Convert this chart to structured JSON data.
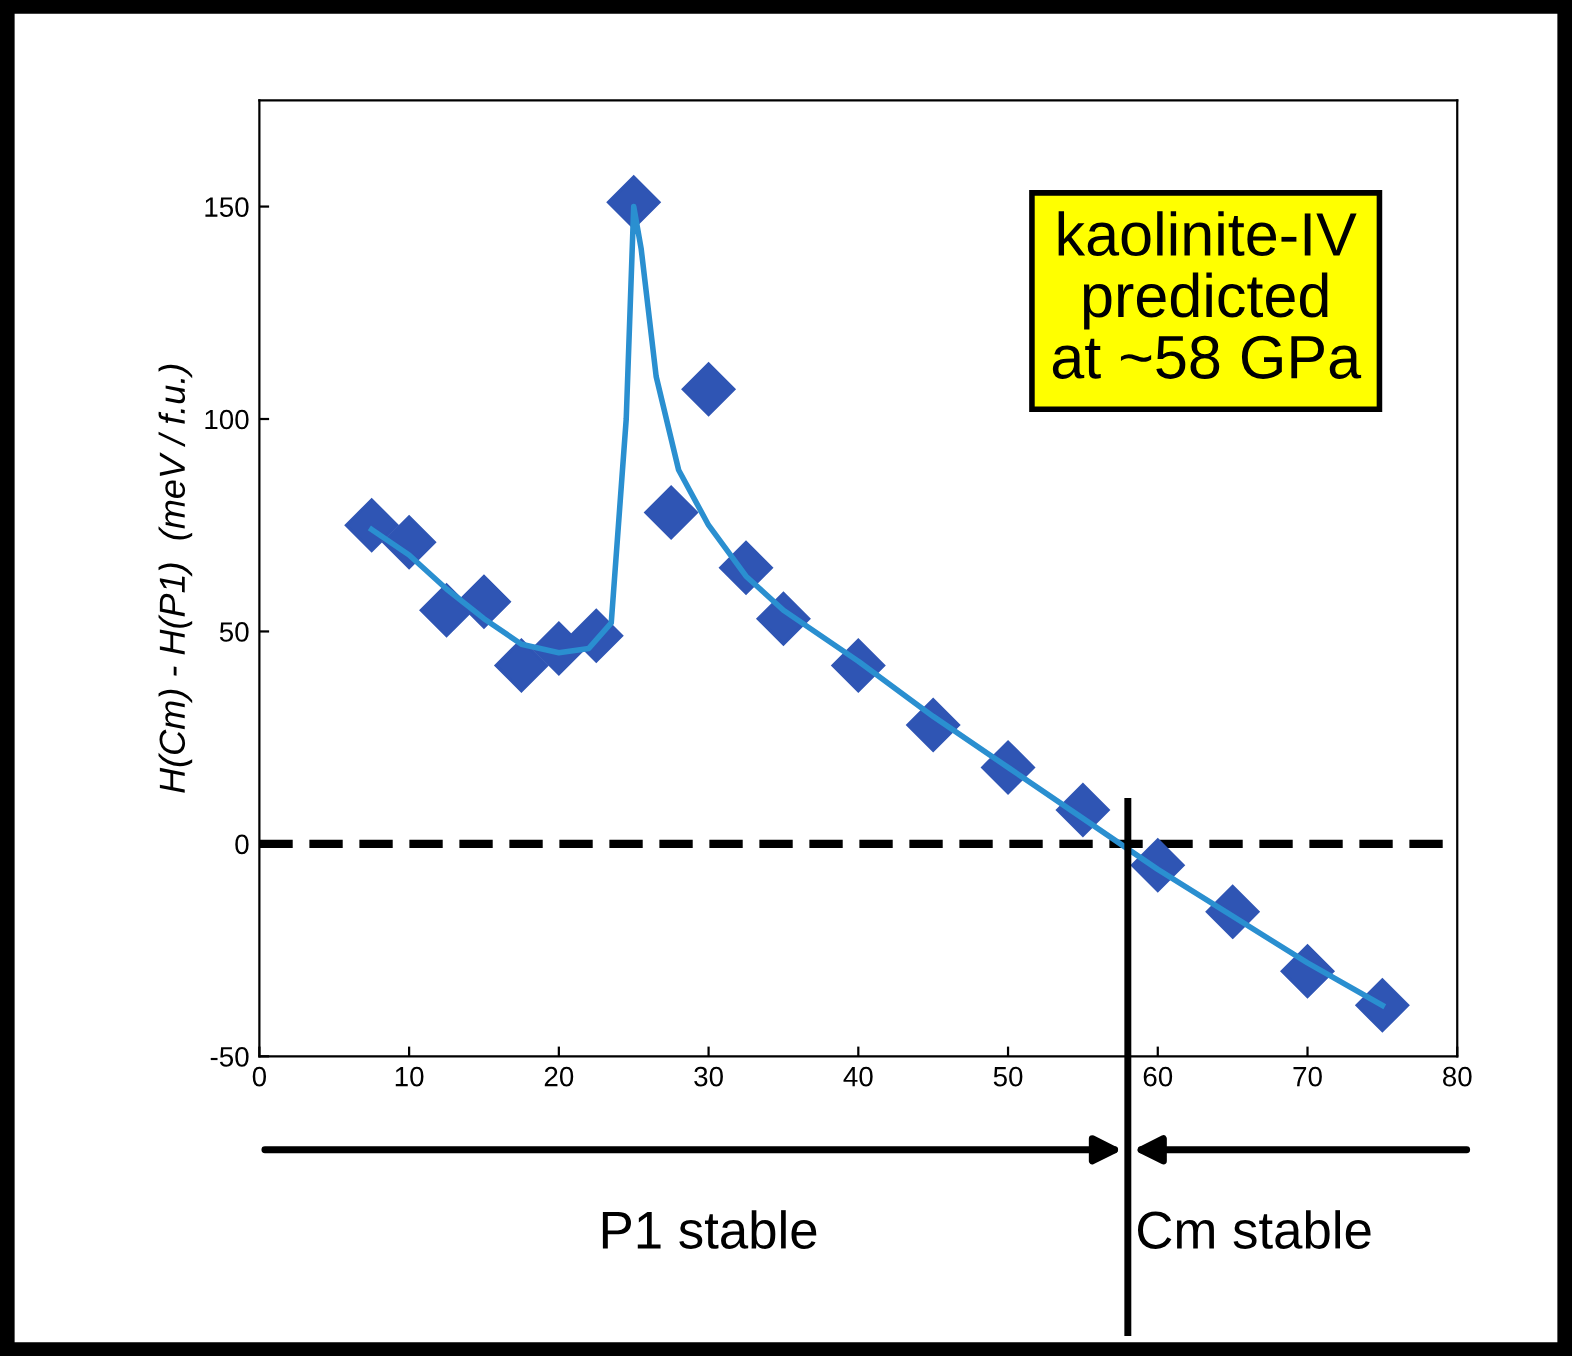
{
  "chart_data": {
    "type": "scatter",
    "ylabel": "H(Cm) - H(P1)  (meV / f.u.)",
    "xlim": [
      0,
      80
    ],
    "xticks": [
      0,
      10,
      20,
      30,
      40,
      50,
      60,
      70,
      80
    ],
    "ylim": [
      -50,
      175
    ],
    "yticks": [
      -50,
      0,
      50,
      100,
      150
    ],
    "grid": false,
    "legend": false,
    "marker": "diamond",
    "series": [
      {
        "color": "#2f55b4",
        "x": [
          7.5,
          10,
          12.5,
          15,
          17.5,
          20,
          22.5,
          25,
          27.5,
          30,
          32.5,
          35,
          40,
          45,
          50,
          55,
          60,
          65,
          70,
          75
        ],
        "values": [
          75,
          71,
          55,
          57,
          42,
          46,
          49,
          151,
          78,
          107,
          65,
          53,
          42,
          28,
          18,
          8,
          -5,
          -16,
          -30,
          -38
        ]
      },
      {
        "type": "line",
        "color": "#2a8fd0",
        "marker": "none",
        "line_style": "solid",
        "x": [
          7.5,
          10,
          12.5,
          15,
          17.5,
          20,
          22,
          23.5,
          24.5,
          25,
          25.5,
          26.5,
          28,
          30,
          32.5,
          35,
          40,
          45,
          50,
          55,
          60,
          65,
          70,
          75
        ],
        "values": [
          74,
          68,
          60,
          53,
          47,
          45,
          46,
          52,
          100,
          150,
          140,
          110,
          88,
          75,
          63,
          55,
          43,
          30,
          18,
          6,
          -6,
          -17,
          -28,
          -38
        ]
      }
    ],
    "ref_lines": [
      {
        "axis": "y",
        "value": 0,
        "color": "#000000",
        "line_style": "dashed"
      },
      {
        "axis": "x",
        "value": 58,
        "color": "#000000",
        "line_style": "solid"
      }
    ],
    "annotations": [
      "kaolinite-IV\npredicted\nat ~58 GPa",
      "P1 stable",
      "Cm stable"
    ]
  }
}
